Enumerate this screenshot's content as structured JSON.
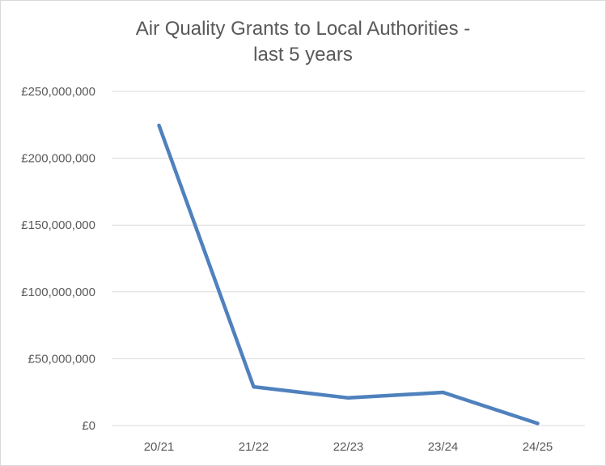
{
  "chart_data": {
    "type": "line",
    "title_line1": "Air Quality Grants to Local Authorities -",
    "title_line2": "last 5 years",
    "categories": [
      "20/21",
      "21/22",
      "22/23",
      "23/24",
      "24/25"
    ],
    "series": [
      {
        "values": [
          224600000,
          29000000,
          20700000,
          24800000,
          1600000
        ]
      }
    ],
    "ylim": [
      0,
      250000000
    ],
    "yticks": [
      0,
      50000000,
      100000000,
      150000000,
      200000000,
      250000000
    ],
    "ytick_labels": [
      "£0",
      "£50,000,000",
      "£100,000,000",
      "£150,000,000",
      "£200,000,000",
      "£250,000,000"
    ],
    "grid": true,
    "line_color": "#4f81bd",
    "grid_color": "#d9d9d9"
  }
}
